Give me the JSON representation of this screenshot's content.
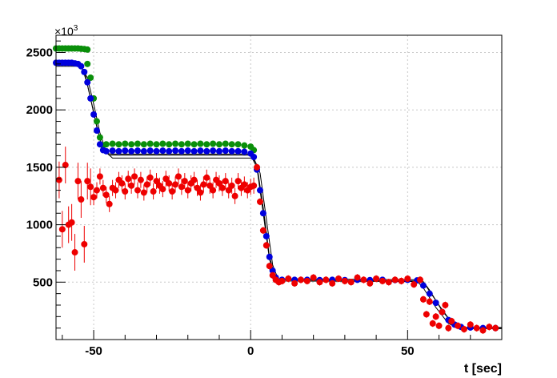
{
  "chart_data": {
    "type": "scatter",
    "title": "",
    "xlabel": "t [sec]",
    "ylabel": "",
    "y_multiplier": "×10",
    "y_multiplier_exp": "3",
    "xlim": [
      -62,
      80
    ],
    "ylim": [
      0,
      2650
    ],
    "x_ticks": [
      -50,
      0,
      50
    ],
    "x_tick_labels": [
      "-50",
      "0",
      "50"
    ],
    "y_ticks": [
      500,
      1000,
      1500,
      2000,
      2500
    ],
    "y_tick_labels": [
      "500",
      "1000",
      "1500",
      "2000",
      "2500"
    ],
    "grid": true,
    "legend": "none",
    "series": [
      {
        "color": "#0a8f0a",
        "marker": "circle",
        "points": [
          [
            -62,
            2535
          ],
          [
            -61,
            2535
          ],
          [
            -60,
            2535
          ],
          [
            -59,
            2535
          ],
          [
            -58,
            2535
          ],
          [
            -57,
            2535
          ],
          [
            -56,
            2535
          ],
          [
            -55,
            2535
          ],
          [
            -54,
            2532
          ],
          [
            -53,
            2530
          ],
          [
            -52,
            2525
          ],
          [
            -52,
            2400
          ],
          [
            -51,
            2280
          ],
          [
            -50,
            2100
          ],
          [
            -49,
            1900
          ],
          [
            -48,
            1760
          ],
          [
            -47,
            1690
          ],
          [
            -46,
            1700
          ],
          [
            -44,
            1705
          ],
          [
            -42,
            1700
          ],
          [
            -40,
            1705
          ],
          [
            -38,
            1700
          ],
          [
            -36,
            1705
          ],
          [
            -34,
            1700
          ],
          [
            -32,
            1705
          ],
          [
            -30,
            1700
          ],
          [
            -28,
            1705
          ],
          [
            -26,
            1700
          ],
          [
            -24,
            1705
          ],
          [
            -22,
            1700
          ],
          [
            -20,
            1705
          ],
          [
            -18,
            1700
          ],
          [
            -16,
            1705
          ],
          [
            -14,
            1700
          ],
          [
            -12,
            1705
          ],
          [
            -10,
            1700
          ],
          [
            -8,
            1705
          ],
          [
            -6,
            1700
          ],
          [
            -4,
            1700
          ],
          [
            -2,
            1690
          ],
          [
            0,
            1680
          ],
          [
            1,
            1650
          ]
        ]
      },
      {
        "color": "#0000dd",
        "marker": "circle",
        "points": [
          [
            -62,
            2410
          ],
          [
            -61,
            2410
          ],
          [
            -60,
            2410
          ],
          [
            -59,
            2410
          ],
          [
            -58,
            2410
          ],
          [
            -57,
            2410
          ],
          [
            -56,
            2405
          ],
          [
            -55,
            2400
          ],
          [
            -54,
            2380
          ],
          [
            -53,
            2330
          ],
          [
            -52,
            2240
          ],
          [
            -51,
            2100
          ],
          [
            -50,
            1960
          ],
          [
            -49,
            1820
          ],
          [
            -48,
            1700
          ],
          [
            -47,
            1650
          ],
          [
            -46,
            1640
          ],
          [
            -44,
            1645
          ],
          [
            -42,
            1640
          ],
          [
            -40,
            1645
          ],
          [
            -38,
            1640
          ],
          [
            -36,
            1645
          ],
          [
            -34,
            1640
          ],
          [
            -32,
            1645
          ],
          [
            -30,
            1640
          ],
          [
            -28,
            1645
          ],
          [
            -26,
            1640
          ],
          [
            -24,
            1645
          ],
          [
            -22,
            1640
          ],
          [
            -20,
            1645
          ],
          [
            -18,
            1640
          ],
          [
            -16,
            1645
          ],
          [
            -14,
            1640
          ],
          [
            -12,
            1645
          ],
          [
            -10,
            1640
          ],
          [
            -8,
            1645
          ],
          [
            -6,
            1640
          ],
          [
            -4,
            1640
          ],
          [
            -2,
            1635
          ],
          [
            0,
            1620
          ],
          [
            1,
            1590
          ],
          [
            2,
            1480
          ],
          [
            3,
            1300
          ],
          [
            4,
            1100
          ],
          [
            5,
            900
          ],
          [
            6,
            720
          ],
          [
            7,
            600
          ],
          [
            8,
            540
          ],
          [
            10,
            520
          ],
          [
            14,
            520
          ],
          [
            18,
            520
          ],
          [
            22,
            518
          ],
          [
            26,
            520
          ],
          [
            30,
            518
          ],
          [
            34,
            520
          ],
          [
            38,
            518
          ],
          [
            42,
            520
          ],
          [
            46,
            518
          ],
          [
            50,
            520
          ],
          [
            53,
            515
          ],
          [
            55,
            470
          ],
          [
            57,
            400
          ],
          [
            59,
            320
          ],
          [
            61,
            240
          ],
          [
            63,
            170
          ],
          [
            65,
            130
          ],
          [
            67,
            110
          ],
          [
            70,
            105
          ],
          [
            74,
            100
          ],
          [
            78,
            100
          ]
        ]
      },
      {
        "color": "#ee0000",
        "marker": "circle",
        "points": [
          [
            -61,
            1390
          ],
          [
            -60,
            960
          ],
          [
            -59,
            1520
          ],
          [
            -58,
            1000
          ],
          [
            -57,
            1020
          ],
          [
            -56,
            760
          ],
          [
            -55,
            1380
          ],
          [
            -54,
            1220
          ],
          [
            -53,
            830
          ],
          [
            -52,
            1380
          ],
          [
            -51,
            1330
          ],
          [
            -50,
            1240
          ],
          [
            -49,
            1300
          ],
          [
            -48,
            1420
          ],
          [
            -47,
            1320
          ],
          [
            -46,
            1260
          ],
          [
            -45,
            1180
          ],
          [
            -44,
            1320
          ],
          [
            -43,
            1300
          ],
          [
            -42,
            1390
          ],
          [
            -41,
            1360
          ],
          [
            -40,
            1290
          ],
          [
            -39,
            1400
          ],
          [
            -38,
            1340
          ],
          [
            -37,
            1420
          ],
          [
            -36,
            1300
          ],
          [
            -35,
            1390
          ],
          [
            -34,
            1280
          ],
          [
            -33,
            1350
          ],
          [
            -32,
            1410
          ],
          [
            -31,
            1290
          ],
          [
            -30,
            1380
          ],
          [
            -29,
            1340
          ],
          [
            -28,
            1310
          ],
          [
            -27,
            1400
          ],
          [
            -26,
            1360
          ],
          [
            -25,
            1290
          ],
          [
            -24,
            1350
          ],
          [
            -23,
            1420
          ],
          [
            -22,
            1330
          ],
          [
            -21,
            1380
          ],
          [
            -20,
            1300
          ],
          [
            -19,
            1360
          ],
          [
            -18,
            1390
          ],
          [
            -17,
            1320
          ],
          [
            -16,
            1280
          ],
          [
            -15,
            1350
          ],
          [
            -14,
            1410
          ],
          [
            -13,
            1340
          ],
          [
            -12,
            1300
          ],
          [
            -11,
            1390
          ],
          [
            -10,
            1360
          ],
          [
            -9,
            1320
          ],
          [
            -8,
            1380
          ],
          [
            -7,
            1300
          ],
          [
            -6,
            1340
          ],
          [
            -5,
            1250
          ],
          [
            -4,
            1380
          ],
          [
            -3,
            1320
          ],
          [
            -2,
            1350
          ],
          [
            -1,
            1300
          ],
          [
            0,
            1330
          ],
          [
            1,
            1340
          ],
          [
            2,
            1500
          ],
          [
            3,
            1200
          ],
          [
            4,
            950
          ],
          [
            5,
            820
          ],
          [
            6,
            640
          ],
          [
            7,
            560
          ],
          [
            8,
            520
          ],
          [
            9,
            500
          ],
          [
            10,
            510
          ],
          [
            12,
            530
          ],
          [
            14,
            490
          ],
          [
            16,
            520
          ],
          [
            18,
            510
          ],
          [
            20,
            540
          ],
          [
            22,
            500
          ],
          [
            24,
            520
          ],
          [
            26,
            490
          ],
          [
            28,
            530
          ],
          [
            30,
            510
          ],
          [
            32,
            500
          ],
          [
            34,
            540
          ],
          [
            36,
            520
          ],
          [
            38,
            490
          ],
          [
            40,
            530
          ],
          [
            42,
            510
          ],
          [
            44,
            500
          ],
          [
            46,
            520
          ],
          [
            48,
            510
          ],
          [
            50,
            530
          ],
          [
            52,
            480
          ],
          [
            54,
            520
          ],
          [
            55,
            350
          ],
          [
            56,
            220
          ],
          [
            57,
            330
          ],
          [
            58,
            140
          ],
          [
            59,
            200
          ],
          [
            60,
            120
          ],
          [
            61,
            240
          ],
          [
            62,
            300
          ],
          [
            63,
            100
          ],
          [
            64,
            160
          ],
          [
            66,
            120
          ],
          [
            68,
            90
          ],
          [
            70,
            130
          ],
          [
            72,
            100
          ],
          [
            74,
            80
          ],
          [
            76,
            110
          ],
          [
            78,
            100
          ]
        ]
      }
    ],
    "fit_curves": [
      {
        "color": "#000000",
        "points": [
          [
            -62,
            2405
          ],
          [
            -55,
            2405
          ],
          [
            -53,
            2340
          ],
          [
            -51,
            2100
          ],
          [
            -49,
            1850
          ],
          [
            -47,
            1650
          ],
          [
            -45,
            1605
          ],
          [
            0,
            1605
          ],
          [
            2,
            1500
          ],
          [
            4,
            1100
          ],
          [
            6,
            700
          ],
          [
            8,
            520
          ],
          [
            53,
            510
          ],
          [
            55,
            450
          ],
          [
            59,
            280
          ],
          [
            63,
            140
          ],
          [
            66,
            100
          ],
          [
            80,
            100
          ]
        ]
      },
      {
        "color": "#000000",
        "points": [
          [
            -62,
            2380
          ],
          [
            -54,
            2380
          ],
          [
            -52,
            2280
          ],
          [
            -50,
            2050
          ],
          [
            -48,
            1800
          ],
          [
            -46,
            1630
          ],
          [
            -44,
            1580
          ],
          [
            1,
            1580
          ],
          [
            3,
            1450
          ],
          [
            5,
            1050
          ],
          [
            7,
            650
          ],
          [
            9,
            510
          ],
          [
            55,
            505
          ],
          [
            57,
            430
          ],
          [
            61,
            250
          ],
          [
            65,
            120
          ],
          [
            68,
            95
          ],
          [
            80,
            95
          ]
        ]
      },
      {
        "color": "#000000",
        "points": [
          [
            -62,
            2400
          ],
          [
            -54,
            2400
          ],
          [
            -52,
            2220
          ],
          [
            -50,
            1980
          ],
          [
            -48,
            1740
          ],
          [
            -46,
            1620
          ],
          [
            -44,
            1615
          ],
          [
            0,
            1615
          ],
          [
            2,
            1520
          ],
          [
            4,
            1150
          ],
          [
            6,
            720
          ],
          [
            8,
            530
          ],
          [
            54,
            520
          ],
          [
            56,
            460
          ],
          [
            60,
            300
          ],
          [
            64,
            150
          ],
          [
            67,
            105
          ],
          [
            80,
            105
          ]
        ]
      }
    ]
  }
}
